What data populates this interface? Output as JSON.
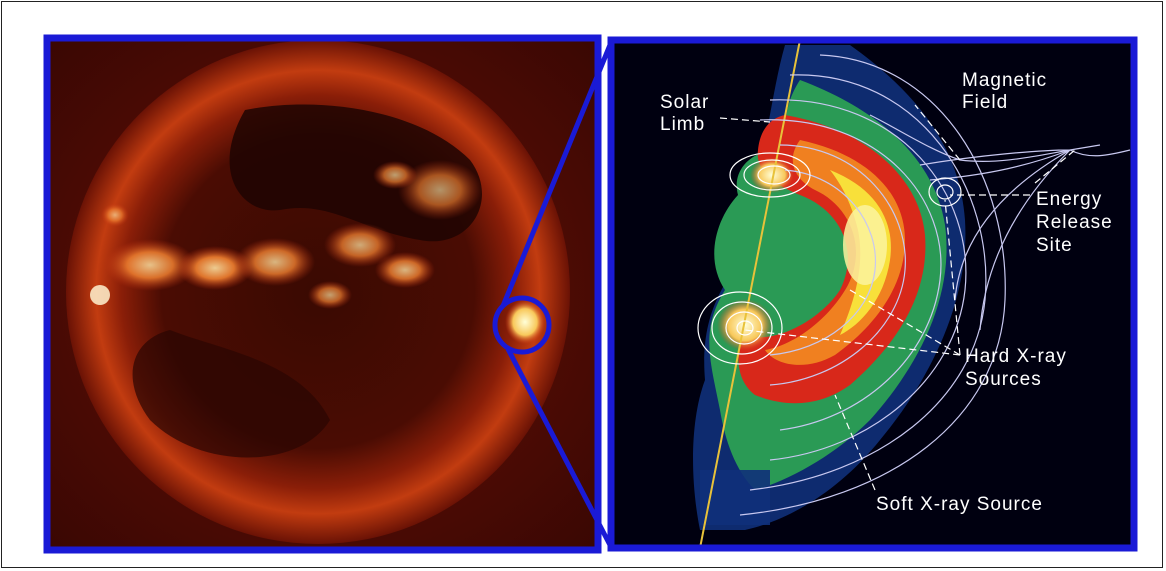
{
  "labels": {
    "solar_limb": [
      "Solar",
      "Limb"
    ],
    "magnetic_field": [
      "Magnetic",
      "Field"
    ],
    "energy_release_site": [
      "Energy",
      "Release",
      "Site"
    ],
    "hard_xray_sources": [
      "Hard X-ray",
      "Sources"
    ],
    "soft_xray_source": "Soft X-ray Source"
  },
  "colors": {
    "frame_blue": "#1a1ad6",
    "sun_red": "#a31a08",
    "flare_green": "#2a9a55",
    "flare_yellow": "#f4ea3a",
    "limb_line": "#e8c23a",
    "contour": "#d8d8ff"
  }
}
